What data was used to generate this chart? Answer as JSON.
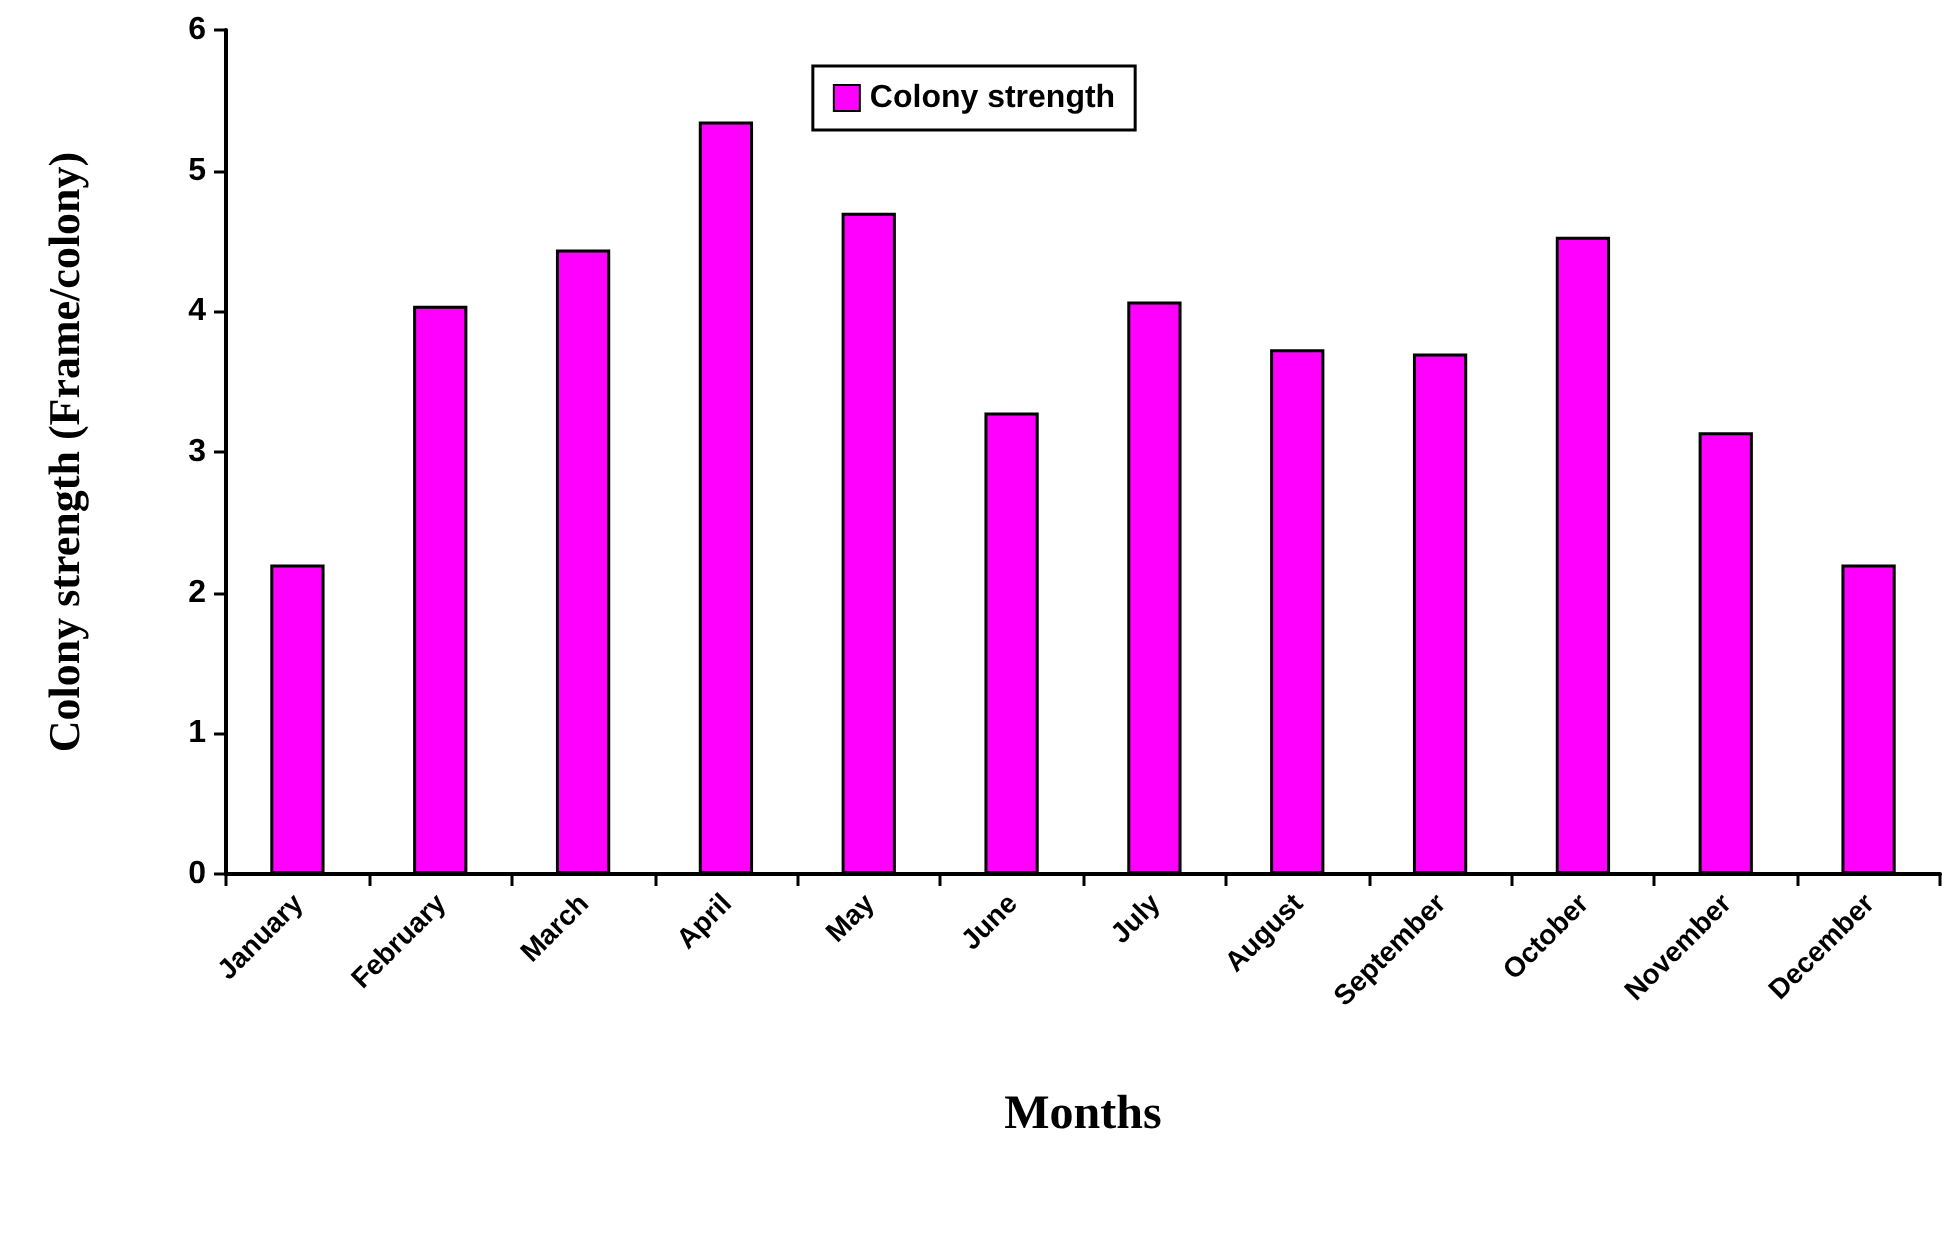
{
  "chart_data": {
    "type": "bar",
    "xlabel": "Months",
    "ylabel": "Colony strength (Frame/colony)",
    "categories": [
      "January",
      "February",
      "March",
      "April",
      "May",
      "June",
      "July",
      "August",
      "September",
      "October",
      "November",
      "December"
    ],
    "series": [
      {
        "name": "Colony strength",
        "color": "#ff00ff",
        "values": [
          2.2,
          4.04,
          4.44,
          5.35,
          4.7,
          3.28,
          4.07,
          3.73,
          3.7,
          4.53,
          3.14,
          2.2
        ]
      }
    ],
    "ylim": [
      0,
      6
    ],
    "yticks": [
      0,
      1,
      2,
      3,
      4,
      5,
      6
    ],
    "grid": false,
    "legend": "top"
  }
}
